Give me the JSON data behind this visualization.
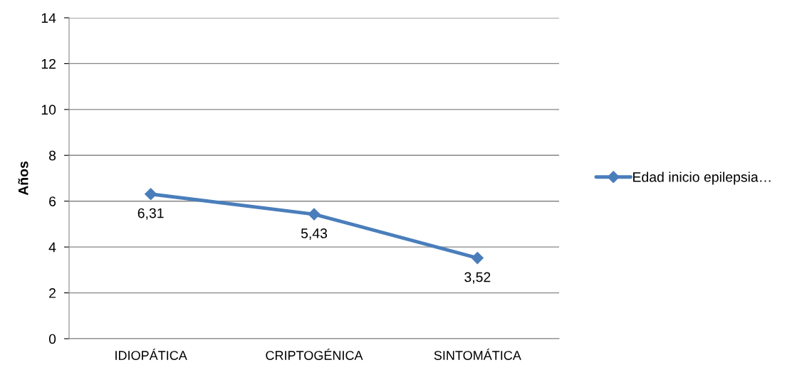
{
  "chart_data": {
    "type": "line",
    "ylabel": "Años",
    "categories": [
      "IDIOPÁTICA",
      "CRIPTOGÉNICA",
      "SINTOMÁTICA"
    ],
    "series": [
      {
        "name": "Edad inicio epilepsia…",
        "color": "#4a7ebb",
        "values": [
          6.31,
          5.43,
          3.52
        ],
        "value_labels": [
          "6,31",
          "5,43",
          "3,52"
        ]
      }
    ],
    "ylim": [
      0,
      14
    ],
    "yticks": [
      0,
      2,
      4,
      6,
      8,
      10,
      12,
      14
    ],
    "grid": "y",
    "legend": "right",
    "marker": "diamond",
    "line_style": "solid"
  }
}
